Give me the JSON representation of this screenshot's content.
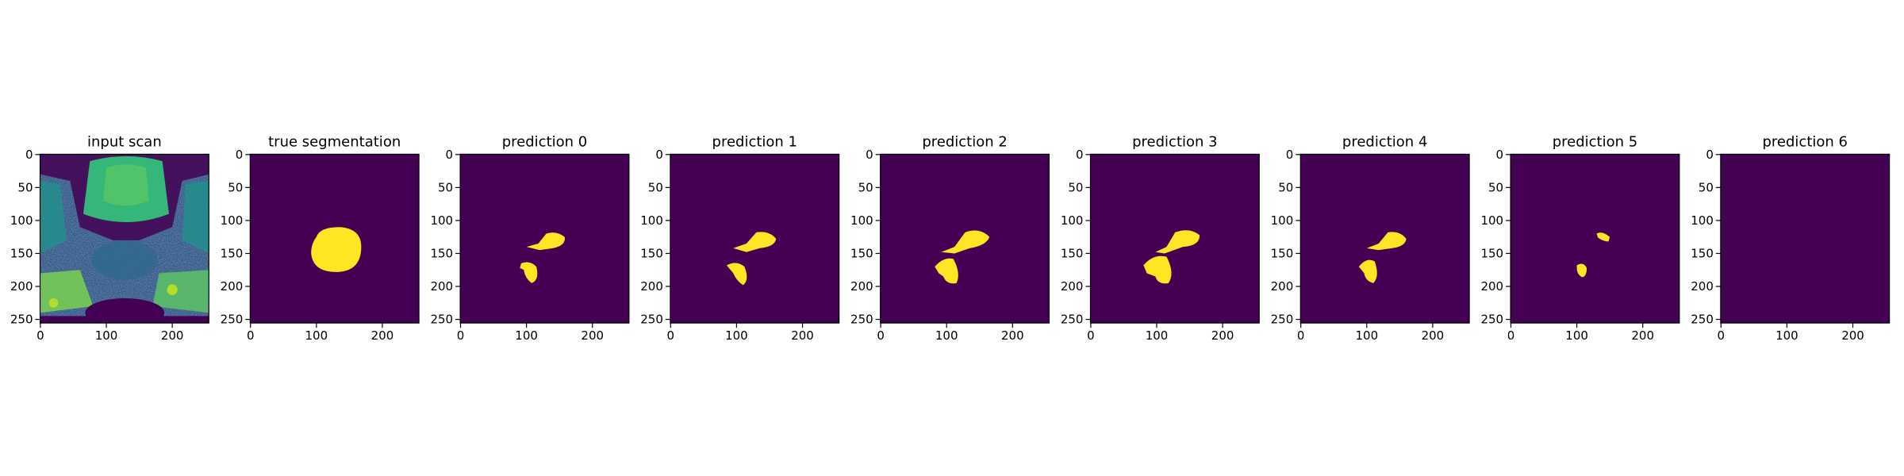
{
  "chart_data": [
    {
      "type": "image",
      "title": "input scan",
      "xlim": [
        -0.5,
        255.5
      ],
      "ylim": [
        255.5,
        -0.5
      ],
      "xticks": [
        0,
        100,
        200
      ],
      "yticks": [
        0,
        50,
        100,
        150,
        200,
        250
      ]
    },
    {
      "type": "image",
      "title": "true segmentation",
      "xlim": [
        -0.5,
        255.5
      ],
      "ylim": [
        255.5,
        -0.5
      ],
      "xticks": [
        0,
        100,
        200
      ],
      "yticks": [
        0,
        50,
        100,
        150,
        200,
        250
      ]
    },
    {
      "type": "image",
      "title": "prediction 0",
      "xlim": [
        -0.5,
        255.5
      ],
      "ylim": [
        255.5,
        -0.5
      ],
      "xticks": [
        0,
        100,
        200
      ],
      "yticks": [
        0,
        50,
        100,
        150,
        200,
        250
      ]
    },
    {
      "type": "image",
      "title": "prediction 1",
      "xlim": [
        -0.5,
        255.5
      ],
      "ylim": [
        255.5,
        -0.5
      ],
      "xticks": [
        0,
        100,
        200
      ],
      "yticks": [
        0,
        50,
        100,
        150,
        200,
        250
      ]
    },
    {
      "type": "image",
      "title": "prediction 2",
      "xlim": [
        -0.5,
        255.5
      ],
      "ylim": [
        255.5,
        -0.5
      ],
      "xticks": [
        0,
        100,
        200
      ],
      "yticks": [
        0,
        50,
        100,
        150,
        200,
        250
      ]
    },
    {
      "type": "image",
      "title": "prediction 3",
      "xlim": [
        -0.5,
        255.5
      ],
      "ylim": [
        255.5,
        -0.5
      ],
      "xticks": [
        0,
        100,
        200
      ],
      "yticks": [
        0,
        50,
        100,
        150,
        200,
        250
      ]
    },
    {
      "type": "image",
      "title": "prediction 4",
      "xlim": [
        -0.5,
        255.5
      ],
      "ylim": [
        255.5,
        -0.5
      ],
      "xticks": [
        0,
        100,
        200
      ],
      "yticks": [
        0,
        50,
        100,
        150,
        200,
        250
      ]
    },
    {
      "type": "image",
      "title": "prediction 5",
      "xlim": [
        -0.5,
        255.5
      ],
      "ylim": [
        255.5,
        -0.5
      ],
      "xticks": [
        0,
        100,
        200
      ],
      "yticks": [
        0,
        50,
        100,
        150,
        200,
        250
      ]
    },
    {
      "type": "image",
      "title": "prediction 6",
      "xlim": [
        -0.5,
        255.5
      ],
      "ylim": [
        255.5,
        -0.5
      ],
      "xticks": [
        0,
        100,
        200
      ],
      "yticks": [
        0,
        50,
        100,
        150,
        200,
        250
      ]
    }
  ]
}
